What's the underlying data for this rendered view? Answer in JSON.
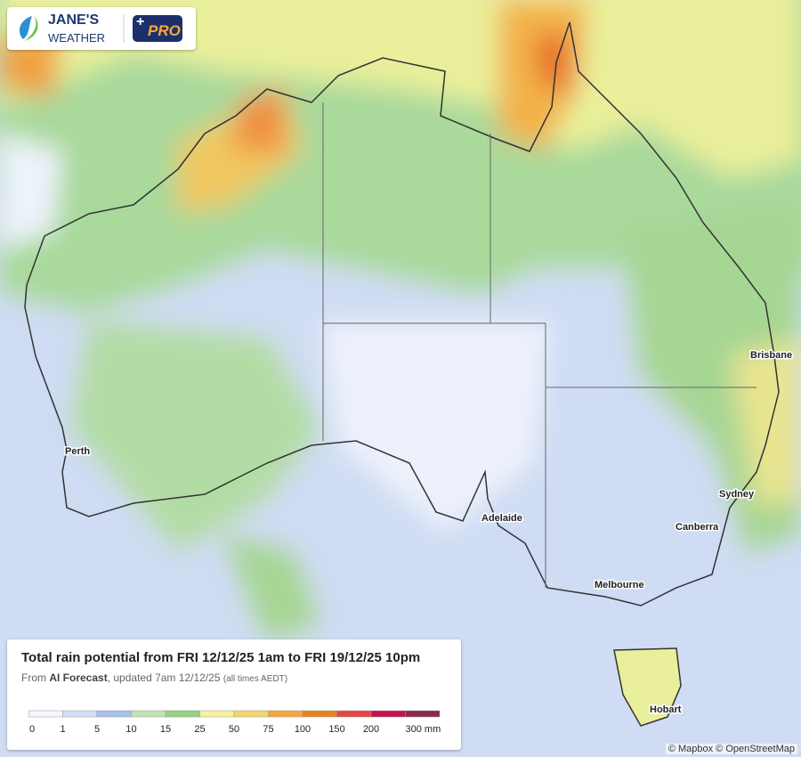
{
  "logo": {
    "name_top": "JANE'S",
    "name_bottom": "WEATHER",
    "plus": "+",
    "badge": "PRO"
  },
  "cities": [
    "Brisbane",
    "Perth",
    "Sydney",
    "Adelaide",
    "Canberra",
    "Melbourne",
    "Hobart"
  ],
  "legend": {
    "title": "Total rain potential from FRI 12/12/25 1am to FRI 19/12/25 10pm",
    "subtitle": {
      "prefix": "From ",
      "source": "AI Forecast",
      "updated": ", updated 7am 12/12/25 ",
      "note": "(all times AEDT)"
    },
    "labels": [
      "0",
      "1",
      "5",
      "10",
      "15",
      "25",
      "50",
      "75",
      "100",
      "150",
      "200",
      "300 mm"
    ],
    "colors": [
      "#f3f6fd",
      "#d2def5",
      "#a8c1e8",
      "#bfe3b4",
      "#93d185",
      "#f7f39c",
      "#f1d66c",
      "#f6a53f",
      "#e5821f",
      "#e54545",
      "#c2134d",
      "#8a2b47"
    ]
  },
  "attribution": "© Mapbox © OpenStreetMap"
}
